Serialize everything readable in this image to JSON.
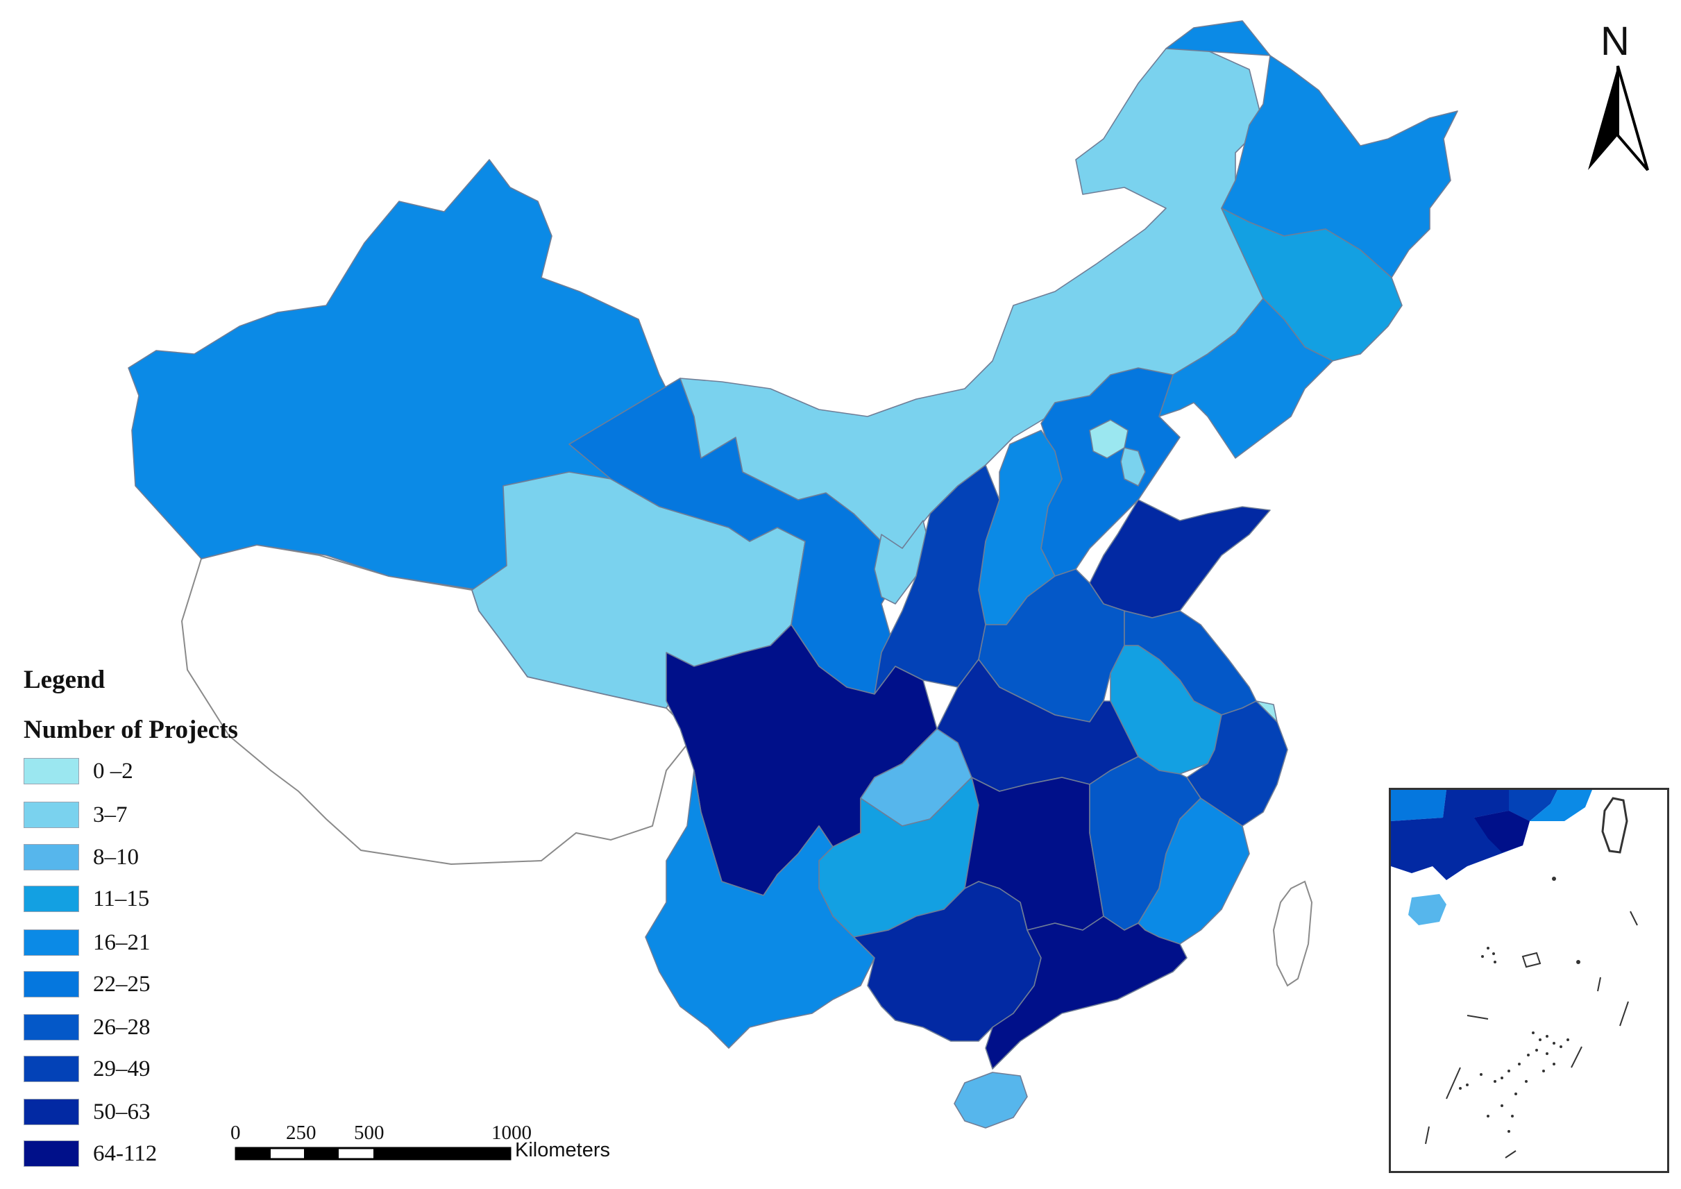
{
  "legend": {
    "title": "Legend",
    "subtitle": "Number of Projects",
    "classes": [
      {
        "label": "0 –2",
        "color": "#9be7f0"
      },
      {
        "label": "3–7",
        "color": "#7ad2ee"
      },
      {
        "label": "8–10",
        "color": "#56b6ec"
      },
      {
        "label": "11–15",
        "color": "#13a0e2"
      },
      {
        "label": "16–21",
        "color": "#0b8ae6"
      },
      {
        "label": "22–25",
        "color": "#0577de"
      },
      {
        "label": "26–28",
        "color": "#0458c8"
      },
      {
        "label": "29–49",
        "color": "#0342b7"
      },
      {
        "label": "50–63",
        "color": "#0229a3"
      },
      {
        "label": "64-112",
        "color": "#00108a"
      }
    ]
  },
  "scale_bar": {
    "ticks": [
      "0",
      "250",
      "500",
      "1000"
    ],
    "unit": "Kilometers"
  },
  "north_arrow": {
    "label": "N",
    "icon": "north-arrow-icon"
  },
  "inset": {
    "description": "South China Sea islands inset",
    "icon": "inset-map"
  },
  "regions": [
    {
      "name": "Xinjiang",
      "class": 4
    },
    {
      "name": "Tibet",
      "class": null
    },
    {
      "name": "Qinghai",
      "class": 1
    },
    {
      "name": "Gansu",
      "class": 5
    },
    {
      "name": "Inner Mongolia",
      "class": 1
    },
    {
      "name": "Heilongjiang",
      "class": 4
    },
    {
      "name": "Jilin",
      "class": 3
    },
    {
      "name": "Liaoning",
      "class": 4
    },
    {
      "name": "Beijing",
      "class": 0
    },
    {
      "name": "Tianjin",
      "class": 1
    },
    {
      "name": "Hebei",
      "class": 5
    },
    {
      "name": "Shanxi",
      "class": 4
    },
    {
      "name": "Shandong",
      "class": 8
    },
    {
      "name": "Ningxia",
      "class": 1
    },
    {
      "name": "Shaanxi",
      "class": 7
    },
    {
      "name": "Henan",
      "class": 6
    },
    {
      "name": "Jiangsu",
      "class": 6
    },
    {
      "name": "Anhui",
      "class": 3
    },
    {
      "name": "Shanghai",
      "class": 0
    },
    {
      "name": "Zhejiang",
      "class": 7
    },
    {
      "name": "Hubei",
      "class": 8
    },
    {
      "name": "Chongqing",
      "class": 2
    },
    {
      "name": "Sichuan",
      "class": 9
    },
    {
      "name": "Yunnan",
      "class": 4
    },
    {
      "name": "Guizhou",
      "class": 3
    },
    {
      "name": "Hunan",
      "class": 9
    },
    {
      "name": "Jiangxi",
      "class": 6
    },
    {
      "name": "Fujian",
      "class": 4
    },
    {
      "name": "Guangxi",
      "class": 8
    },
    {
      "name": "Guangdong",
      "class": 9
    },
    {
      "name": "Hainan",
      "class": 2
    },
    {
      "name": "Taiwan",
      "class": null
    }
  ]
}
